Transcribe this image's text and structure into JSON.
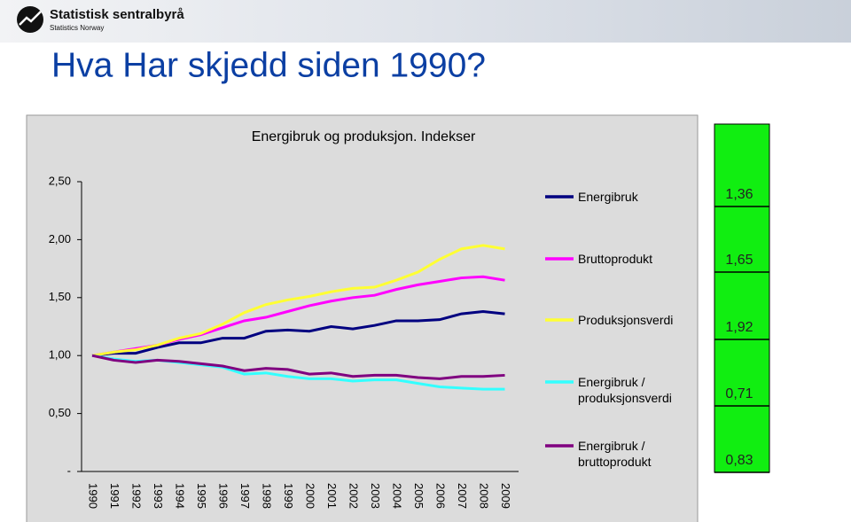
{
  "header": {
    "brand": "Statistisk sentralbyrå",
    "brand_sub": "Statistics Norway"
  },
  "slide_title": "Hva Har skjedd siden 1990?",
  "chart_data": {
    "type": "line",
    "title": "Energibruk og produksjon. Indekser",
    "categories": [
      "1990",
      "1991",
      "1992",
      "1993",
      "1994",
      "1995",
      "1996",
      "1997",
      "1998",
      "1999",
      "2000",
      "2001",
      "2002",
      "2003",
      "2004",
      "2005",
      "2006",
      "2007",
      "2008",
      "2009"
    ],
    "ylim": [
      0,
      2.5
    ],
    "yticks": [
      {
        "value": 0,
        "label": "-"
      },
      {
        "value": 0.5,
        "label": "0,50"
      },
      {
        "value": 1,
        "label": "1,00"
      },
      {
        "value": 1.5,
        "label": "1,50"
      },
      {
        "value": 2,
        "label": "2,00"
      },
      {
        "value": 2.5,
        "label": "2,50"
      }
    ],
    "grid": false,
    "series": [
      {
        "name": "Energibruk",
        "color": "#000080",
        "end_label": "1,36",
        "values": [
          1.0,
          1.02,
          1.02,
          1.07,
          1.11,
          1.11,
          1.15,
          1.15,
          1.21,
          1.22,
          1.21,
          1.25,
          1.23,
          1.26,
          1.3,
          1.3,
          1.31,
          1.36,
          1.38,
          1.36
        ]
      },
      {
        "name": "Bruttoprodukt",
        "color": "#ff00ff",
        "end_label": "1,65",
        "values": [
          1.0,
          1.03,
          1.06,
          1.09,
          1.14,
          1.18,
          1.24,
          1.3,
          1.33,
          1.38,
          1.43,
          1.47,
          1.5,
          1.52,
          1.57,
          1.61,
          1.64,
          1.67,
          1.68,
          1.65
        ]
      },
      {
        "name": "Produksjonsverdi",
        "color": "#ffff33",
        "end_label": "1,92",
        "values": [
          1.0,
          1.03,
          1.05,
          1.09,
          1.15,
          1.19,
          1.27,
          1.37,
          1.44,
          1.48,
          1.51,
          1.55,
          1.58,
          1.59,
          1.65,
          1.72,
          1.83,
          1.92,
          1.95,
          1.92
        ]
      },
      {
        "name": "Energibruk / produksjonsverdi",
        "color": "#33ffff",
        "end_label": "0,71",
        "values": [
          1.0,
          0.97,
          0.95,
          0.96,
          0.94,
          0.92,
          0.9,
          0.84,
          0.85,
          0.82,
          0.8,
          0.8,
          0.78,
          0.79,
          0.79,
          0.76,
          0.73,
          0.72,
          0.71,
          0.71
        ]
      },
      {
        "name": "Energibruk / bruttoprodukt",
        "color": "#800080",
        "end_label": "0,83",
        "values": [
          1.0,
          0.96,
          0.94,
          0.96,
          0.95,
          0.93,
          0.91,
          0.87,
          0.89,
          0.88,
          0.84,
          0.85,
          0.82,
          0.83,
          0.83,
          0.81,
          0.8,
          0.82,
          0.82,
          0.83
        ]
      }
    ]
  }
}
